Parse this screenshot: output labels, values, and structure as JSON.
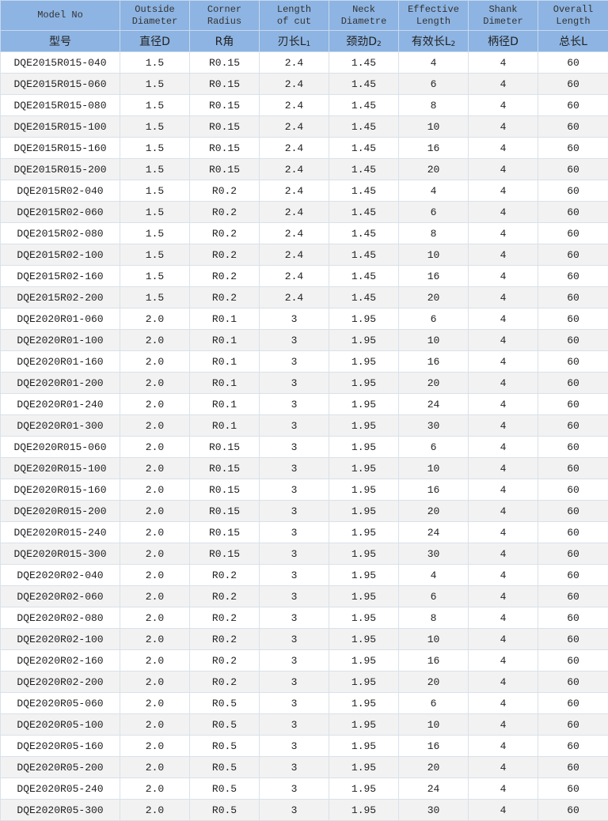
{
  "header_en": [
    "Model No",
    "Outside\nDiameter",
    "Corner\nRadius",
    "Length\nof cut",
    "Neck\nDiametre",
    "Effective\nLength",
    "Shank\nDimeter",
    "Overall\nLength"
  ],
  "header_cn": [
    {
      "text": "型号",
      "sub": ""
    },
    {
      "text": "直径D",
      "sub": ""
    },
    {
      "text": "R角",
      "sub": ""
    },
    {
      "text": "刃长L",
      "sub": "1"
    },
    {
      "text": "颈劲D",
      "sub": "2"
    },
    {
      "text": "有效长L",
      "sub": "2"
    },
    {
      "text": "柄径D",
      "sub": ""
    },
    {
      "text": "总长L",
      "sub": ""
    }
  ],
  "header_bg": "#8db4e2",
  "rows": [
    [
      "DQE2015R015-040",
      "1.5",
      "R0.15",
      "2.4",
      "1.45",
      "4",
      "4",
      "60"
    ],
    [
      "DQE2015R015-060",
      "1.5",
      "R0.15",
      "2.4",
      "1.45",
      "6",
      "4",
      "60"
    ],
    [
      "DQE2015R015-080",
      "1.5",
      "R0.15",
      "2.4",
      "1.45",
      "8",
      "4",
      "60"
    ],
    [
      "DQE2015R015-100",
      "1.5",
      "R0.15",
      "2.4",
      "1.45",
      "10",
      "4",
      "60"
    ],
    [
      "DQE2015R015-160",
      "1.5",
      "R0.15",
      "2.4",
      "1.45",
      "16",
      "4",
      "60"
    ],
    [
      "DQE2015R015-200",
      "1.5",
      "R0.15",
      "2.4",
      "1.45",
      "20",
      "4",
      "60"
    ],
    [
      "DQE2015R02-040",
      "1.5",
      "R0.2",
      "2.4",
      "1.45",
      "4",
      "4",
      "60"
    ],
    [
      "DQE2015R02-060",
      "1.5",
      "R0.2",
      "2.4",
      "1.45",
      "6",
      "4",
      "60"
    ],
    [
      "DQE2015R02-080",
      "1.5",
      "R0.2",
      "2.4",
      "1.45",
      "8",
      "4",
      "60"
    ],
    [
      "DQE2015R02-100",
      "1.5",
      "R0.2",
      "2.4",
      "1.45",
      "10",
      "4",
      "60"
    ],
    [
      "DQE2015R02-160",
      "1.5",
      "R0.2",
      "2.4",
      "1.45",
      "16",
      "4",
      "60"
    ],
    [
      "DQE2015R02-200",
      "1.5",
      "R0.2",
      "2.4",
      "1.45",
      "20",
      "4",
      "60"
    ],
    [
      "DQE2020R01-060",
      "2.0",
      "R0.1",
      "3",
      "1.95",
      "6",
      "4",
      "60"
    ],
    [
      "DQE2020R01-100",
      "2.0",
      "R0.1",
      "3",
      "1.95",
      "10",
      "4",
      "60"
    ],
    [
      "DQE2020R01-160",
      "2.0",
      "R0.1",
      "3",
      "1.95",
      "16",
      "4",
      "60"
    ],
    [
      "DQE2020R01-200",
      "2.0",
      "R0.1",
      "3",
      "1.95",
      "20",
      "4",
      "60"
    ],
    [
      "DQE2020R01-240",
      "2.0",
      "R0.1",
      "3",
      "1.95",
      "24",
      "4",
      "60"
    ],
    [
      "DQE2020R01-300",
      "2.0",
      "R0.1",
      "3",
      "1.95",
      "30",
      "4",
      "60"
    ],
    [
      "DQE2020R015-060",
      "2.0",
      "R0.15",
      "3",
      "1.95",
      "6",
      "4",
      "60"
    ],
    [
      "DQE2020R015-100",
      "2.0",
      "R0.15",
      "3",
      "1.95",
      "10",
      "4",
      "60"
    ],
    [
      "DQE2020R015-160",
      "2.0",
      "R0.15",
      "3",
      "1.95",
      "16",
      "4",
      "60"
    ],
    [
      "DQE2020R015-200",
      "2.0",
      "R0.15",
      "3",
      "1.95",
      "20",
      "4",
      "60"
    ],
    [
      "DQE2020R015-240",
      "2.0",
      "R0.15",
      "3",
      "1.95",
      "24",
      "4",
      "60"
    ],
    [
      "DQE2020R015-300",
      "2.0",
      "R0.15",
      "3",
      "1.95",
      "30",
      "4",
      "60"
    ],
    [
      "DQE2020R02-040",
      "2.0",
      "R0.2",
      "3",
      "1.95",
      "4",
      "4",
      "60"
    ],
    [
      "DQE2020R02-060",
      "2.0",
      "R0.2",
      "3",
      "1.95",
      "6",
      "4",
      "60"
    ],
    [
      "DQE2020R02-080",
      "2.0",
      "R0.2",
      "3",
      "1.95",
      "8",
      "4",
      "60"
    ],
    [
      "DQE2020R02-100",
      "2.0",
      "R0.2",
      "3",
      "1.95",
      "10",
      "4",
      "60"
    ],
    [
      "DQE2020R02-160",
      "2.0",
      "R0.2",
      "3",
      "1.95",
      "16",
      "4",
      "60"
    ],
    [
      "DQE2020R02-200",
      "2.0",
      "R0.2",
      "3",
      "1.95",
      "20",
      "4",
      "60"
    ],
    [
      "DQE2020R05-060",
      "2.0",
      "R0.5",
      "3",
      "1.95",
      "6",
      "4",
      "60"
    ],
    [
      "DQE2020R05-100",
      "2.0",
      "R0.5",
      "3",
      "1.95",
      "10",
      "4",
      "60"
    ],
    [
      "DQE2020R05-160",
      "2.0",
      "R0.5",
      "3",
      "1.95",
      "16",
      "4",
      "60"
    ],
    [
      "DQE2020R05-200",
      "2.0",
      "R0.5",
      "3",
      "1.95",
      "20",
      "4",
      "60"
    ],
    [
      "DQE2020R05-240",
      "2.0",
      "R0.5",
      "3",
      "1.95",
      "24",
      "4",
      "60"
    ],
    [
      "DQE2020R05-300",
      "2.0",
      "R0.5",
      "3",
      "1.95",
      "30",
      "4",
      "60"
    ]
  ]
}
